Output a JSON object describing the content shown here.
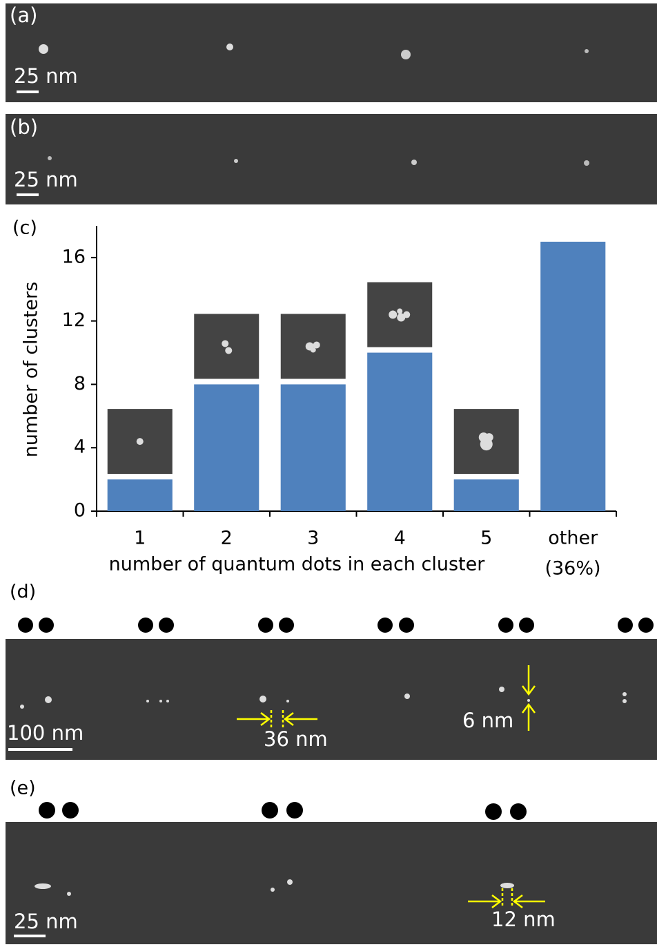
{
  "image_panels": {
    "a": {
      "label": "(a)",
      "scale": "25 nm"
    },
    "b": {
      "label": "(b)",
      "scale": "25 nm"
    },
    "d": {
      "label": "(d)",
      "scale": "100 nm",
      "annotations": [
        "36 nm",
        "6 nm"
      ]
    },
    "e": {
      "label": "(e)",
      "scale": "25 nm",
      "annotations": [
        "12 nm"
      ]
    }
  },
  "chart_data": {
    "type": "bar",
    "panel_label": "(c)",
    "x_label": "number of quantum dots in each cluster",
    "y_label": "number of clusters",
    "categories": [
      "1",
      "2",
      "3",
      "4",
      "5",
      "other"
    ],
    "annotation": "(36%)",
    "values": [
      2,
      8,
      8,
      10,
      2,
      17
    ],
    "color": "#4f81bd",
    "ylim": [
      0,
      18
    ],
    "yticks": [
      0,
      4,
      8,
      12,
      16
    ]
  }
}
